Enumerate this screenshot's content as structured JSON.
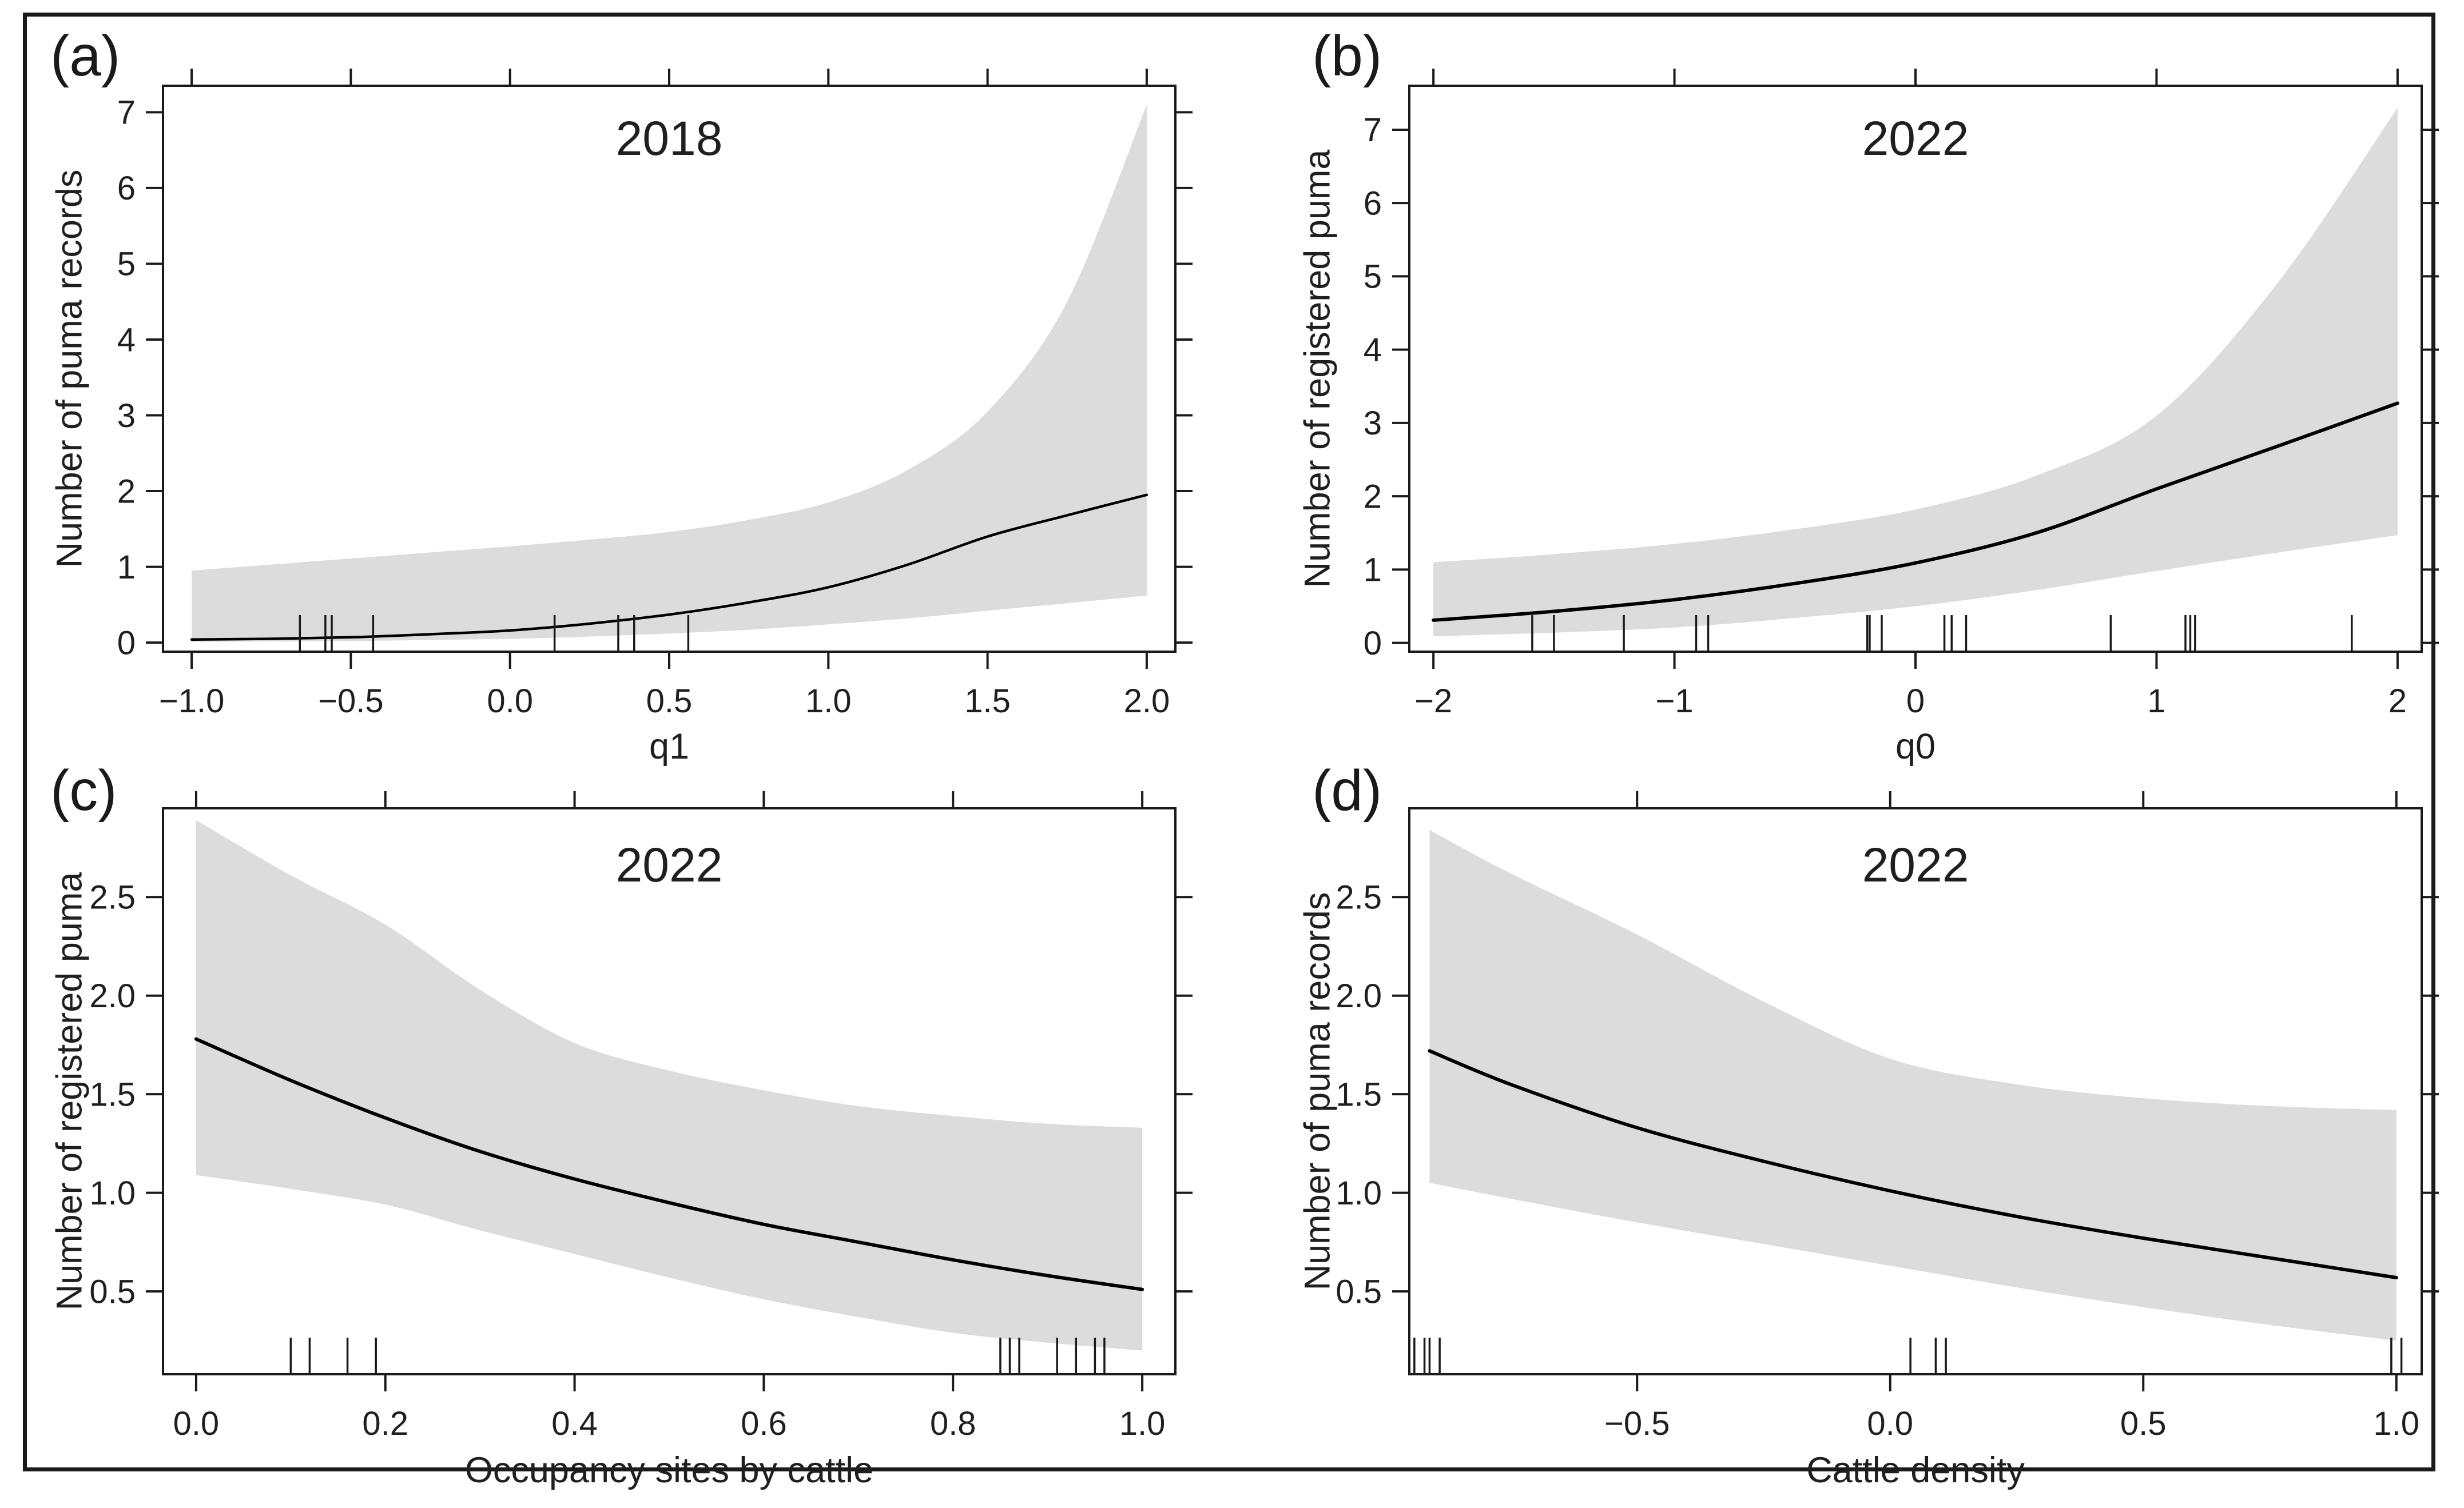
{
  "figure": {
    "background_color": "#ffffff",
    "border_color": "#1a1a1a",
    "band_color": "#dcdcdc",
    "line_color": "#000000",
    "tick_color": "#1a1a1a"
  },
  "chart_data": [
    {
      "type": "line",
      "tag": "(a)",
      "title": "2018",
      "xlabel": "q1",
      "ylabel": "Number of puma records",
      "xlim": [
        -1.09,
        2.09
      ],
      "ylim": [
        -0.12,
        7.35
      ],
      "x_ticks": [
        -1.0,
        -0.5,
        0.0,
        0.5,
        1.0,
        1.5,
        2.0
      ],
      "x_tick_labels": [
        "−1.0",
        "−0.5",
        "0.0",
        "0.5",
        "1.0",
        "1.5",
        "2.0"
      ],
      "y_ticks": [
        0,
        1,
        2,
        3,
        4,
        5,
        6,
        7
      ],
      "y_tick_labels": [
        "0",
        "1",
        "2",
        "3",
        "4",
        "5",
        "6",
        "7"
      ],
      "series": {
        "x": [
          -1.0,
          -0.75,
          -0.5,
          -0.25,
          0.0,
          0.25,
          0.5,
          0.75,
          1.0,
          1.25,
          1.5,
          1.75,
          2.0
        ],
        "fit": [
          0.04,
          0.05,
          0.07,
          0.11,
          0.16,
          0.25,
          0.37,
          0.53,
          0.73,
          1.03,
          1.4,
          1.68,
          1.95
        ],
        "upper": [
          0.95,
          1.03,
          1.11,
          1.19,
          1.27,
          1.36,
          1.46,
          1.62,
          1.85,
          2.28,
          3.05,
          4.5,
          7.1
        ],
        "lower": [
          0.01,
          0.015,
          0.02,
          0.035,
          0.05,
          0.08,
          0.12,
          0.17,
          0.24,
          0.32,
          0.42,
          0.52,
          0.62
        ]
      },
      "rug": [
        -0.66,
        -0.58,
        -0.56,
        -0.43,
        0.14,
        0.34,
        0.39,
        0.56
      ]
    },
    {
      "type": "line",
      "tag": "(b)",
      "title": "2022",
      "xlabel": "q0",
      "ylabel": "Number of registered puma",
      "xlim": [
        -2.1,
        2.1
      ],
      "ylim": [
        -0.12,
        7.6
      ],
      "x_ticks": [
        -2,
        -1,
        0,
        1,
        2
      ],
      "x_tick_labels": [
        "−2",
        "−1",
        "0",
        "1",
        "2"
      ],
      "y_ticks": [
        0,
        1,
        2,
        3,
        4,
        5,
        6,
        7
      ],
      "y_tick_labels": [
        "0",
        "1",
        "2",
        "3",
        "4",
        "5",
        "6",
        "7"
      ],
      "series": {
        "x": [
          -2.0,
          -1.5,
          -1.0,
          -0.5,
          0.0,
          0.5,
          1.0,
          1.5,
          2.0
        ],
        "fit": [
          0.31,
          0.43,
          0.59,
          0.81,
          1.09,
          1.5,
          2.1,
          2.68,
          3.27
        ],
        "upper": [
          1.1,
          1.21,
          1.35,
          1.55,
          1.82,
          2.28,
          3.1,
          4.9,
          7.3
        ],
        "lower": [
          0.09,
          0.14,
          0.21,
          0.34,
          0.5,
          0.72,
          0.98,
          1.23,
          1.47
        ]
      },
      "rug": [
        -1.59,
        -1.5,
        -1.21,
        -0.91,
        -0.86,
        -0.2,
        -0.19,
        -0.14,
        0.12,
        0.15,
        0.21,
        0.81,
        1.12,
        1.14,
        1.16,
        1.81
      ]
    },
    {
      "type": "line",
      "tag": "(c)",
      "title": "2022",
      "xlabel": "Occupancy sites by cattle",
      "ylabel": "Number of registered puma",
      "xlim": [
        -0.035,
        1.035
      ],
      "ylim": [
        0.08,
        2.95
      ],
      "x_ticks": [
        0.0,
        0.2,
        0.4,
        0.6,
        0.8,
        1.0
      ],
      "x_tick_labels": [
        "0.0",
        "0.2",
        "0.4",
        "0.6",
        "0.8",
        "1.0"
      ],
      "y_ticks": [
        0.5,
        1.0,
        1.5,
        2.0,
        2.5
      ],
      "y_tick_labels": [
        "0.5",
        "1.0",
        "1.5",
        "2.0",
        "2.5"
      ],
      "series": {
        "x": [
          0.0,
          0.1,
          0.2,
          0.3,
          0.4,
          0.5,
          0.6,
          0.7,
          0.8,
          0.9,
          1.0
        ],
        "fit": [
          1.78,
          1.57,
          1.38,
          1.21,
          1.07,
          0.95,
          0.84,
          0.75,
          0.66,
          0.58,
          0.51
        ],
        "upper": [
          2.89,
          2.61,
          2.36,
          2.03,
          1.76,
          1.62,
          1.52,
          1.44,
          1.39,
          1.35,
          1.33
        ],
        "lower": [
          1.09,
          1.02,
          0.94,
          0.81,
          0.69,
          0.57,
          0.46,
          0.37,
          0.29,
          0.24,
          0.2
        ]
      },
      "rug": [
        0.1,
        0.12,
        0.16,
        0.19,
        0.85,
        0.86,
        0.87,
        0.91,
        0.93,
        0.95,
        0.96
      ]
    },
    {
      "type": "line",
      "tag": "(d)",
      "title": "2022",
      "xlabel": "Cattle density",
      "ylabel": "Number of puma records",
      "xlim": [
        -0.95,
        1.05
      ],
      "ylim": [
        0.08,
        2.95
      ],
      "x_ticks": [
        -0.5,
        0.0,
        0.5,
        1.0
      ],
      "x_tick_labels": [
        "−0.5",
        "0.0",
        "0.5",
        "1.0"
      ],
      "y_ticks": [
        0.5,
        1.0,
        1.5,
        2.0,
        2.5
      ],
      "y_tick_labels": [
        "0.5",
        "1.0",
        "1.5",
        "2.0",
        "2.5"
      ],
      "series": {
        "x": [
          -0.91,
          -0.75,
          -0.5,
          -0.25,
          0.0,
          0.25,
          0.5,
          0.75,
          1.0
        ],
        "fit": [
          1.72,
          1.55,
          1.33,
          1.16,
          1.01,
          0.88,
          0.77,
          0.67,
          0.57
        ],
        "upper": [
          2.84,
          2.62,
          2.31,
          1.97,
          1.68,
          1.55,
          1.48,
          1.44,
          1.42
        ],
        "lower": [
          1.05,
          0.97,
          0.85,
          0.74,
          0.63,
          0.52,
          0.42,
          0.33,
          0.25
        ]
      },
      "rug": [
        -0.94,
        -0.92,
        -0.91,
        -0.89,
        0.04,
        0.09,
        0.11,
        0.99,
        1.01
      ]
    }
  ]
}
